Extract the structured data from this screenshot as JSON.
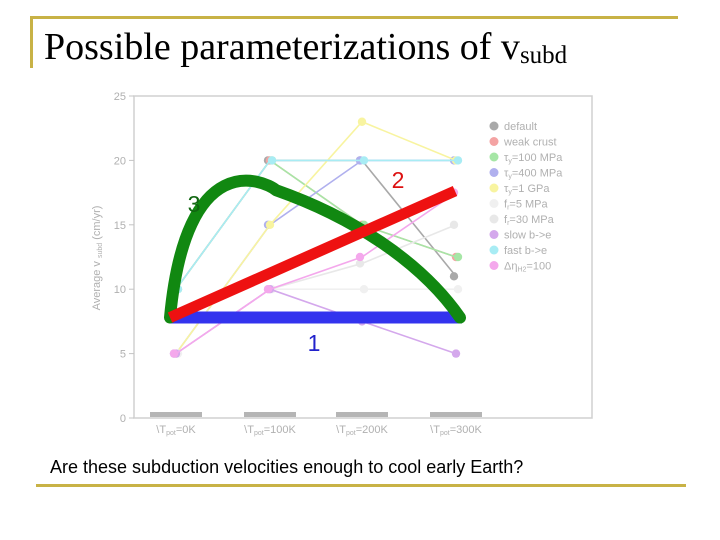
{
  "slide": {
    "title_main": "Possible parameterizations of v",
    "title_sub": "subd",
    "caption": "Are these subduction velocities enough to cool early Earth?",
    "accent_color": "#c8b246"
  },
  "chart_data": {
    "type": "line",
    "ylabel": "Average v",
    "ylabel_sub": "subd",
    "ylabel_unit": "(cm/yr)",
    "ylim": [
      0,
      25
    ],
    "yticks": [
      0,
      5,
      10,
      15,
      20,
      25
    ],
    "categories": [
      {
        "pre": "\\T",
        "sub": "pot",
        "post": "=0K"
      },
      {
        "pre": "\\T",
        "sub": "pot",
        "post": "=100K"
      },
      {
        "pre": "\\T",
        "sub": "pot",
        "post": "=200K"
      },
      {
        "pre": "\\T",
        "sub": "pot",
        "post": "=300K"
      }
    ],
    "grid": false,
    "legend_position": "right",
    "series": [
      {
        "name": "default",
        "label": [
          {
            "t": "default"
          }
        ],
        "color": "#a9a9a9",
        "points": [
          [
            0,
            10
          ],
          [
            1,
            20
          ],
          [
            2,
            20
          ],
          [
            3,
            11
          ]
        ]
      },
      {
        "name": "weak crust",
        "label": [
          {
            "t": "weak crust"
          }
        ],
        "color": "#f4a3a3",
        "points": [
          [
            0,
            10
          ],
          [
            1,
            20
          ],
          [
            2,
            15
          ],
          [
            3,
            12.5
          ]
        ]
      },
      {
        "name": "τy=100 MPa",
        "label": [
          {
            "t": "τ"
          },
          {
            "t": "y",
            "sub": true
          },
          {
            "t": "=100 MPa"
          }
        ],
        "color": "#a6e6a6",
        "points": [
          [
            0,
            10
          ],
          [
            1,
            20
          ],
          [
            2,
            15
          ],
          [
            3,
            12.5
          ]
        ]
      },
      {
        "name": "τy=400 MPa",
        "label": [
          {
            "t": "τ"
          },
          {
            "t": "y",
            "sub": true
          },
          {
            "t": "=400 MPa"
          }
        ],
        "color": "#b0b0ee",
        "points": [
          [
            0,
            5
          ],
          [
            1,
            15
          ],
          [
            2,
            20
          ],
          [
            3,
            20
          ]
        ]
      },
      {
        "name": "τy=1 GPa",
        "label": [
          {
            "t": "τ"
          },
          {
            "t": "y",
            "sub": true
          },
          {
            "t": "=1 GPa"
          }
        ],
        "color": "#f8f4a0",
        "points": [
          [
            0,
            5
          ],
          [
            1,
            15
          ],
          [
            2,
            23
          ],
          [
            3,
            20
          ]
        ]
      },
      {
        "name": "fr=5 MPa",
        "label": [
          {
            "t": "f"
          },
          {
            "t": "r",
            "sub": true
          },
          {
            "t": "=5 MPa"
          }
        ],
        "color": "#f0f0f0",
        "points": [
          [
            0,
            5
          ],
          [
            1,
            10
          ],
          [
            2,
            10
          ],
          [
            3,
            10
          ]
        ]
      },
      {
        "name": "fr=30 MPa",
        "label": [
          {
            "t": "f"
          },
          {
            "t": "r",
            "sub": true
          },
          {
            "t": "=30 MPa"
          }
        ],
        "color": "#e8e8e8",
        "points": [
          [
            0,
            5
          ],
          [
            1,
            10
          ],
          [
            2,
            12
          ],
          [
            3,
            15
          ]
        ]
      },
      {
        "name": "slow b->e",
        "label": [
          {
            "t": "slow b->e"
          }
        ],
        "color": "#d4a8ec",
        "points": [
          [
            0,
            5
          ],
          [
            1,
            10
          ],
          [
            2,
            7.5
          ],
          [
            3,
            5
          ]
        ]
      },
      {
        "name": "fast b->e",
        "label": [
          {
            "t": "fast b->e"
          }
        ],
        "color": "#a8ecf4",
        "points": [
          [
            0,
            10
          ],
          [
            1,
            20
          ],
          [
            2,
            20
          ],
          [
            3,
            20
          ]
        ]
      },
      {
        "name": "ΔηH2=100",
        "label": [
          {
            "t": "Δη"
          },
          {
            "t": "H2",
            "sub": true
          },
          {
            "t": "=100"
          }
        ],
        "color": "#f4a8ec",
        "points": [
          [
            0,
            5
          ],
          [
            1,
            10
          ],
          [
            2,
            12.5
          ],
          [
            3,
            17.5
          ]
        ]
      }
    ],
    "annotations": [
      {
        "label": "1",
        "color": "#3333ee",
        "label_color": "#2222cc",
        "shape": "horizontal line",
        "points": [
          [
            0,
            7.8
          ],
          [
            3,
            7.8
          ]
        ]
      },
      {
        "label": "2",
        "color": "#ee1111",
        "label_color": "#dd1111",
        "shape": "straight line",
        "points": [
          [
            0,
            7.8
          ],
          [
            3,
            17.5
          ]
        ]
      },
      {
        "label": "3",
        "color": "#118811",
        "label_color": "#116611",
        "shape": "arch",
        "points": [
          [
            0,
            7.8
          ],
          [
            1,
            18
          ],
          [
            3,
            7.8
          ]
        ]
      }
    ]
  }
}
